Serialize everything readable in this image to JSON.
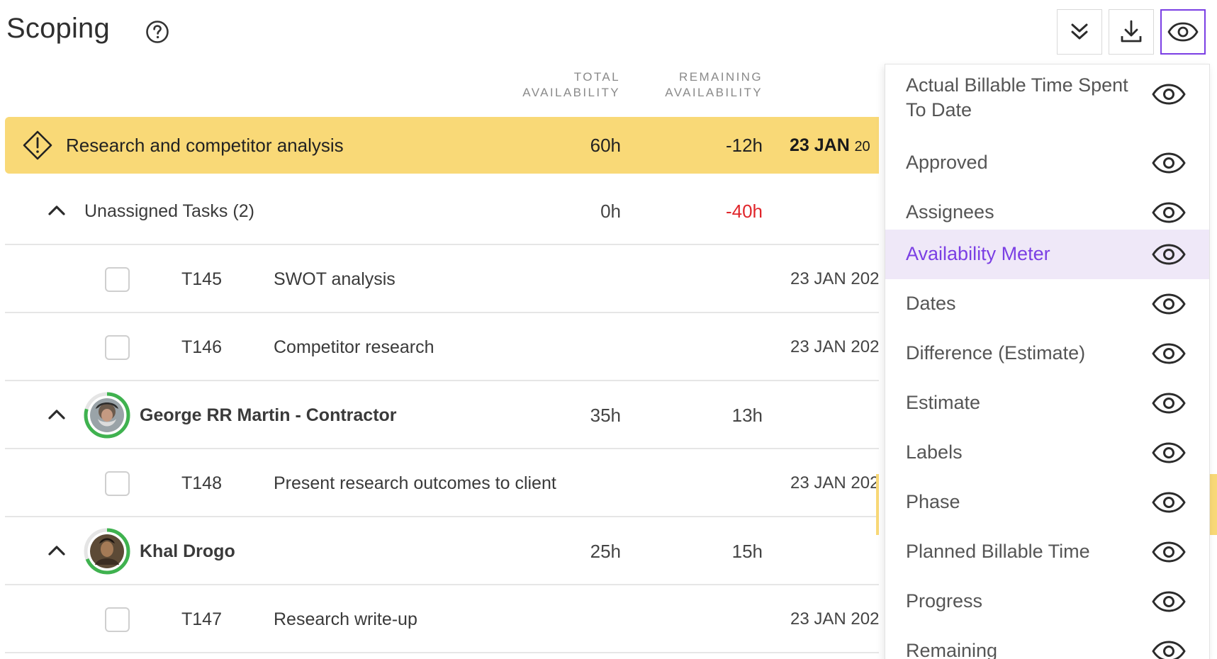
{
  "header": {
    "title": "Scoping",
    "help_icon": "question-circle-icon",
    "toolbar": [
      {
        "name": "collapse-all-button",
        "icon": "double-chevron-down-icon"
      },
      {
        "name": "download-button",
        "icon": "download-icon"
      },
      {
        "name": "column-visibility-button",
        "icon": "eye-icon",
        "active": true
      }
    ]
  },
  "columns": {
    "total_availability": [
      "TOTAL",
      "AVAILABILITY"
    ],
    "remaining_availability": [
      "REMAINING",
      "AVAILABILITY"
    ]
  },
  "project": {
    "name": "Research and competitor analysis",
    "total": "60h",
    "remaining": "-12h",
    "date_day": "23 JAN",
    "date_year_partial": "20",
    "warning_icon": "warning-diamond-icon"
  },
  "groups": [
    {
      "label": "Unassigned Tasks",
      "count": "(2)",
      "total": "0h",
      "remaining": "-40h",
      "remaining_color": "#e0262b",
      "tasks": [
        {
          "id": "T145",
          "name": "SWOT analysis",
          "date": "23 JAN 202"
        },
        {
          "id": "T146",
          "name": "Competitor research",
          "date": "23 JAN 202"
        }
      ]
    },
    {
      "label": "George RR Martin - Contractor",
      "total": "35h",
      "remaining": "13h",
      "availability_ring_color": "#3fb24f",
      "tasks": [
        {
          "id": "T148",
          "name": "Present research outcomes to client",
          "date": "23 JAN 202"
        }
      ]
    },
    {
      "label": "Khal Drogo",
      "total": "25h",
      "remaining": "15h",
      "availability_ring_color": "#3fb24f",
      "tasks": [
        {
          "id": "T147",
          "name": "Research write-up",
          "date": "23 JAN 202"
        }
      ]
    }
  ],
  "column_menu": {
    "items": [
      {
        "label": "Actual Billable Time Spent\nTo Date",
        "icon": "eye-icon"
      },
      {
        "label": "Approved",
        "icon": "eye-icon"
      },
      {
        "label": "Assignees",
        "icon": "eye-icon"
      },
      {
        "label": "Availability Meter",
        "icon": "eye-icon",
        "active": true
      },
      {
        "label": "Dates",
        "icon": "eye-icon"
      },
      {
        "label": "Difference (Estimate)",
        "icon": "eye-icon"
      },
      {
        "label": "Estimate",
        "icon": "eye-icon"
      },
      {
        "label": "Labels",
        "icon": "eye-icon"
      },
      {
        "label": "Phase",
        "icon": "eye-icon"
      },
      {
        "label": "Planned Billable Time",
        "icon": "eye-icon"
      },
      {
        "label": "Progress",
        "icon": "eye-icon"
      },
      {
        "label": "Remaining",
        "icon": "eye-icon"
      }
    ]
  },
  "colors": {
    "accent": "#7b3fe4",
    "project_highlight": "#f9d977",
    "negative": "#e0262b",
    "menu_active_bg": "#efe8f8"
  }
}
